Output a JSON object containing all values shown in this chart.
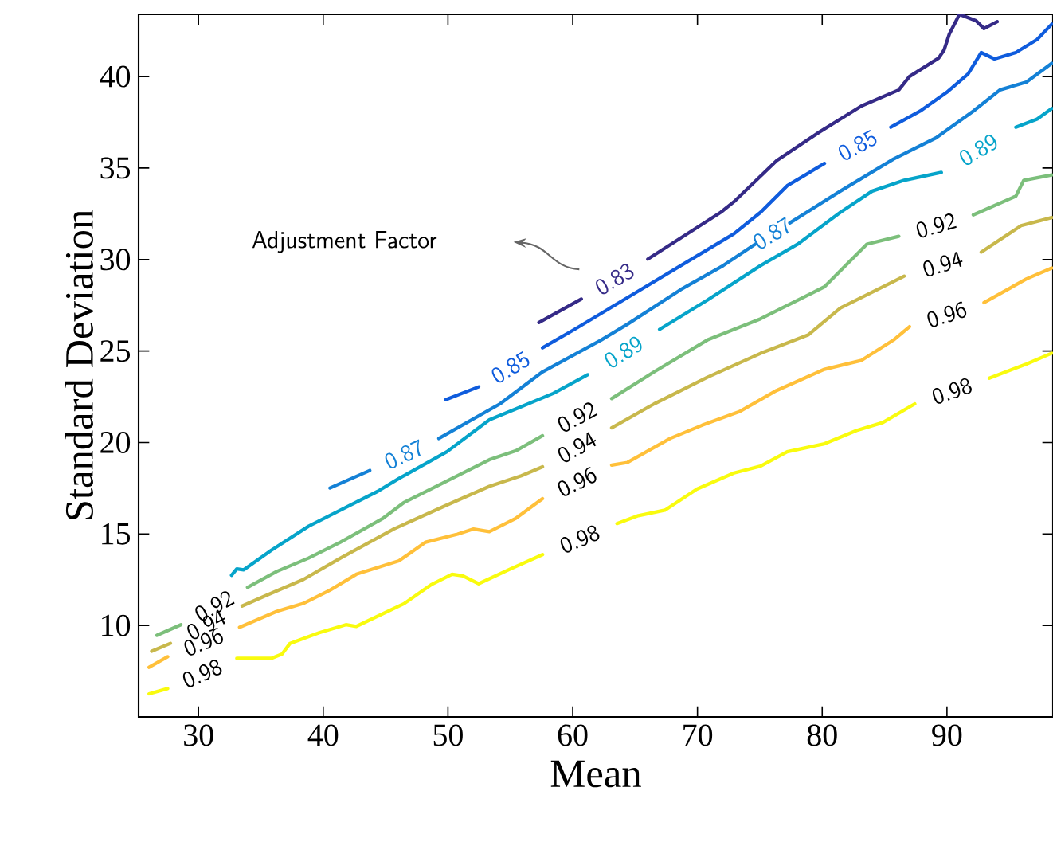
{
  "chart_data": {
    "type": "line",
    "xlabel": "Mean",
    "ylabel": "Standard Deviation",
    "xlim": [
      25.2,
      98.5
    ],
    "ylim": [
      5,
      43.4
    ],
    "xticks": [
      30,
      40,
      50,
      60,
      70,
      80,
      90
    ],
    "yticks": [
      10,
      15,
      20,
      25,
      30,
      35,
      40
    ],
    "grid": false,
    "legend": false,
    "annotations": [
      "Adjustment Factor"
    ],
    "series": [
      {
        "name": "0.83",
        "color": "#352a87",
        "x": [
          57.29,
          60.69,
          63.35,
          66.02,
          71.87,
          72.93,
          76.34,
          79.74,
          83.15,
          86.14,
          86.99,
          89.34,
          89.77,
          90.19,
          91.0,
          92.33,
          92.97,
          94.03
        ],
        "values": [
          26.56,
          27.84,
          null,
          30.02,
          32.58,
          33.16,
          35.4,
          36.95,
          38.39,
          39.27,
          40.0,
          41.01,
          41.45,
          42.32,
          43.4,
          43.05,
          42.62,
          43.0
        ]
      },
      {
        "name": "0.85",
        "color": "#0f5cdd",
        "x": [
          49.82,
          52.46,
          55.0,
          57.58,
          60.14,
          64.4,
          68.67,
          72.93,
          75.06,
          77.19,
          80.18,
          82.8,
          85.5,
          87.85,
          89.97,
          91.69,
          92.75,
          93.81,
          95.52,
          97.23,
          98.4
        ],
        "values": [
          22.34,
          23.04,
          null,
          25.17,
          26.18,
          27.92,
          29.67,
          31.41,
          32.58,
          34.03,
          35.25,
          null,
          37.23,
          38.11,
          39.13,
          40.14,
          41.31,
          40.96,
          41.31,
          42.03,
          42.86
        ]
      },
      {
        "name": "0.87",
        "color": "#1481d6",
        "x": [
          40.54,
          43.73,
          46.5,
          49.27,
          54.17,
          57.58,
          62.28,
          64.4,
          68.67,
          72.07,
          74.63,
          76.0,
          77.4,
          81.46,
          85.72,
          89.13,
          92.11,
          94.25,
          96.37,
          98.4
        ],
        "values": [
          17.51,
          18.47,
          null,
          20.22,
          22.11,
          23.86,
          25.6,
          26.47,
          28.36,
          29.67,
          30.84,
          null,
          32.0,
          33.74,
          35.49,
          36.65,
          38.11,
          39.27,
          39.7,
          40.72
        ]
      },
      {
        "name": "0.89",
        "color": "#06a4ca",
        "x": [
          32.65,
          33.07,
          33.63,
          35.84,
          38.82,
          41.38,
          44.37,
          46.07,
          49.91,
          53.32,
          55.88,
          58.44,
          61.2,
          64.1,
          66.96,
          70.79,
          75.06,
          78.04,
          81.46,
          84.01,
          86.57,
          89.55,
          92.5,
          95.52,
          97.23,
          98.4
        ],
        "values": [
          12.74,
          13.09,
          13.04,
          14.11,
          15.42,
          16.3,
          17.33,
          18.03,
          19.49,
          21.24,
          21.96,
          22.68,
          23.7,
          null,
          26.18,
          27.78,
          29.67,
          30.84,
          32.58,
          33.74,
          34.33,
          34.76,
          null,
          37.23,
          37.67,
          38.25
        ]
      },
      {
        "name": "0.92",
        "color": "#7cbf7b",
        "x": [
          26.67,
          28.59,
          31.3,
          33.93,
          36.27,
          38.82,
          41.38,
          44.8,
          46.5,
          49.91,
          53.32,
          55.45,
          57.58,
          60.3,
          63.12,
          66.53,
          70.79,
          75.06,
          80.18,
          83.58,
          86.14,
          89.1,
          92.11,
          95.52,
          96.16,
          98.4
        ],
        "values": [
          9.46,
          10.04,
          null,
          12.08,
          12.95,
          13.68,
          14.55,
          15.86,
          16.73,
          17.89,
          19.06,
          19.55,
          20.37,
          null,
          22.4,
          23.86,
          25.6,
          26.76,
          28.51,
          30.84,
          31.27,
          null,
          32.44,
          33.46,
          34.33,
          34.62
        ]
      },
      {
        "name": "0.94",
        "color": "#c8b84c",
        "x": [
          26.25,
          27.75,
          30.6,
          33.5,
          35.42,
          38.4,
          41.38,
          45.65,
          49.91,
          53.32,
          55.88,
          57.58,
          60.3,
          63.12,
          66.53,
          70.79,
          75.06,
          78.9,
          81.46,
          85.72,
          86.57,
          89.7,
          92.75,
          95.94,
          98.4
        ],
        "values": [
          8.59,
          9.02,
          null,
          11.06,
          11.64,
          12.51,
          13.68,
          15.27,
          16.58,
          17.6,
          18.18,
          18.67,
          null,
          20.8,
          22.11,
          23.56,
          24.87,
          25.89,
          27.35,
          28.8,
          29.09,
          null,
          30.4,
          31.85,
          32.29
        ]
      },
      {
        "name": "0.96",
        "color": "#ffc03a",
        "x": [
          26.04,
          27.53,
          30.4,
          33.29,
          36.27,
          38.4,
          40.54,
          42.66,
          46.07,
          48.21,
          50.77,
          52.05,
          53.32,
          55.45,
          57.58,
          60.3,
          63.12,
          64.4,
          67.81,
          70.37,
          73.35,
          76.34,
          80.18,
          83.16,
          85.72,
          87.0,
          90.0,
          92.97,
          96.37,
          98.4
        ],
        "values": [
          7.71,
          8.29,
          null,
          9.9,
          10.77,
          11.2,
          11.93,
          12.8,
          13.53,
          14.55,
          14.99,
          15.27,
          15.13,
          15.86,
          16.93,
          null,
          18.76,
          18.91,
          20.22,
          20.94,
          21.68,
          22.84,
          24.0,
          24.49,
          25.6,
          26.33,
          null,
          27.64,
          28.94,
          29.53
        ]
      },
      {
        "name": "0.98",
        "color": "#f9fb0e",
        "x": [
          26.04,
          27.53,
          30.3,
          33.07,
          35.84,
          36.7,
          37.34,
          39.68,
          41.82,
          42.66,
          46.5,
          48.63,
          50.33,
          51.19,
          52.46,
          55.02,
          57.58,
          60.6,
          63.55,
          65.26,
          67.39,
          69.95,
          72.93,
          75.06,
          77.19,
          80.18,
          82.74,
          84.86,
          87.42,
          90.4,
          93.39,
          96.37,
          98.4
        ],
        "values": [
          6.26,
          6.55,
          null,
          8.2,
          8.2,
          8.44,
          9.02,
          9.6,
          10.04,
          9.95,
          11.2,
          12.22,
          12.8,
          12.71,
          12.28,
          13.09,
          13.87,
          null,
          15.57,
          16.0,
          16.3,
          17.45,
          18.33,
          18.71,
          19.49,
          19.93,
          20.65,
          21.09,
          22.11,
          null,
          23.51,
          24.29,
          24.88
        ]
      }
    ]
  }
}
